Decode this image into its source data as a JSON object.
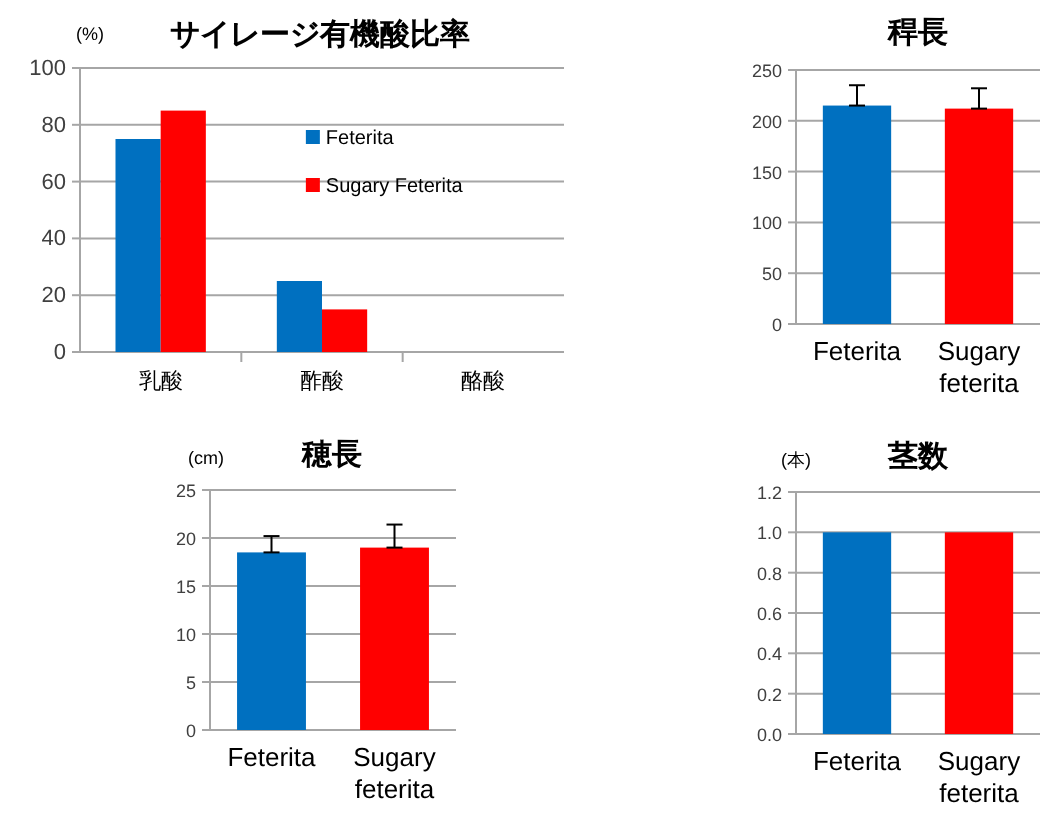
{
  "chart_data": [
    {
      "type": "bar",
      "title": "サイレージ有機酸比率",
      "ylabel": "(%)",
      "categories": [
        "乳酸",
        "酢酸",
        "酪酸"
      ],
      "series": [
        {
          "name": "Feterita",
          "color": "#0070c0",
          "values": [
            75,
            25,
            0
          ]
        },
        {
          "name": "Sugary Feterita",
          "color": "#ff0000",
          "values": [
            85,
            15,
            0
          ]
        }
      ],
      "ylim": [
        0,
        100
      ],
      "yticks": [
        0,
        20,
        40,
        60,
        80,
        100
      ],
      "grid": "y",
      "legend": "right"
    },
    {
      "type": "bar",
      "title": "稈長",
      "categories": [
        "Feterita",
        "Sugary feterita"
      ],
      "values": [
        215,
        212
      ],
      "colors": [
        "#0070c0",
        "#ff0000"
      ],
      "errors": [
        [
          215,
          235
        ],
        [
          212,
          232
        ]
      ],
      "ylim": [
        0,
        250
      ],
      "yticks": [
        0,
        50,
        100,
        150,
        200,
        250
      ],
      "grid": "y"
    },
    {
      "type": "bar",
      "title": "穂長",
      "ylabel": "(cm)",
      "categories": [
        "Feterita",
        "Sugary feterita"
      ],
      "values": [
        18.5,
        19
      ],
      "colors": [
        "#0070c0",
        "#ff0000"
      ],
      "errors": [
        [
          18.5,
          20.2
        ],
        [
          19,
          21.4
        ]
      ],
      "ylim": [
        0,
        25
      ],
      "yticks": [
        0,
        5,
        10,
        15,
        20,
        25
      ],
      "grid": "y"
    },
    {
      "type": "bar",
      "title": "茎数",
      "ylabel": "(本)",
      "categories": [
        "Feterita",
        "Sugary feterita"
      ],
      "values": [
        1.0,
        1.0
      ],
      "colors": [
        "#0070c0",
        "#ff0000"
      ],
      "ylim": [
        0,
        1.2
      ],
      "yticks": [
        {
          "value": 0,
          "label": "0.0"
        },
        0.2,
        0.4,
        0.6,
        0.8,
        {
          "value": 1,
          "label": "1.0"
        },
        1.2
      ],
      "grid": "y"
    }
  ]
}
